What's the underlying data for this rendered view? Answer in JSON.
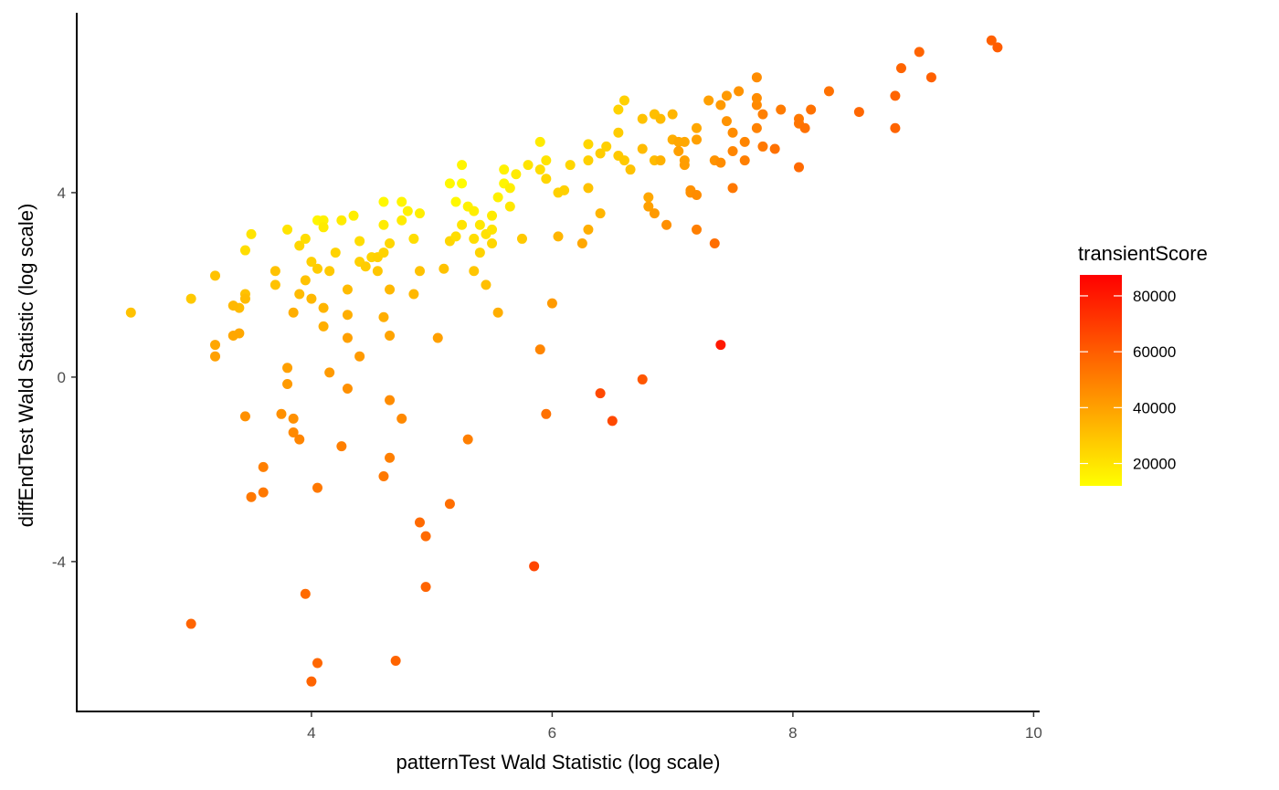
{
  "chart_data": {
    "type": "scatter",
    "xlabel": "patternTest Wald Statistic (log scale)",
    "ylabel": "diffEndTest Wald Statistic (log scale)",
    "xlim": [
      2.05,
      10.05
    ],
    "ylim": [
      -7.25,
      7.9
    ],
    "x_ticks": [
      4,
      6,
      8,
      10
    ],
    "y_ticks": [
      -4,
      0,
      4
    ],
    "grid": false,
    "legend": {
      "title": "transientScore",
      "position": "right",
      "type": "colorbar",
      "range": [
        12000,
        87500
      ],
      "breaks": [
        20000,
        40000,
        60000,
        80000
      ],
      "low_color": "#FFFF00",
      "high_color": "#FF0000"
    },
    "points": [
      [
        2.5,
        1.4,
        30000
      ],
      [
        3.0,
        1.7,
        28000
      ],
      [
        3.2,
        2.2,
        30000
      ],
      [
        3.5,
        3.1,
        20000
      ],
      [
        3.45,
        2.75,
        22000
      ],
      [
        3.45,
        1.8,
        30000
      ],
      [
        3.4,
        1.5,
        32000
      ],
      [
        3.2,
        0.7,
        38000
      ],
      [
        3.2,
        0.45,
        40000
      ],
      [
        3.35,
        0.9,
        38000
      ],
      [
        3.4,
        0.95,
        38000
      ],
      [
        3.35,
        1.55,
        33000
      ],
      [
        3.45,
        1.7,
        32000
      ],
      [
        3.7,
        2.3,
        30000
      ],
      [
        3.7,
        2.0,
        30000
      ],
      [
        3.8,
        3.2,
        20000
      ],
      [
        3.9,
        2.85,
        24000
      ],
      [
        3.95,
        3.0,
        22000
      ],
      [
        4.05,
        3.4,
        15000
      ],
      [
        4.1,
        3.4,
        16000
      ],
      [
        4.1,
        3.25,
        18000
      ],
      [
        4.0,
        2.5,
        26000
      ],
      [
        4.05,
        2.35,
        27000
      ],
      [
        3.95,
        2.1,
        30000
      ],
      [
        3.9,
        1.8,
        32000
      ],
      [
        4.0,
        1.7,
        33000
      ],
      [
        3.85,
        1.4,
        36000
      ],
      [
        3.8,
        0.2,
        40000
      ],
      [
        3.8,
        -0.15,
        42000
      ],
      [
        3.75,
        -0.8,
        45000
      ],
      [
        3.85,
        -0.9,
        45000
      ],
      [
        3.85,
        -1.2,
        47000
      ],
      [
        3.9,
        -1.35,
        48000
      ],
      [
        3.45,
        -0.85,
        45000
      ],
      [
        3.6,
        -1.95,
        50000
      ],
      [
        3.5,
        -2.6,
        52000
      ],
      [
        3.6,
        -2.5,
        52000
      ],
      [
        3.0,
        -5.35,
        58000
      ],
      [
        3.95,
        -4.7,
        56000
      ],
      [
        4.0,
        -6.6,
        58000
      ],
      [
        4.05,
        -6.2,
        57000
      ],
      [
        4.05,
        -2.4,
        52000
      ],
      [
        4.25,
        -1.5,
        50000
      ],
      [
        4.3,
        -0.25,
        45000
      ],
      [
        4.15,
        0.1,
        42000
      ],
      [
        4.1,
        1.1,
        36000
      ],
      [
        4.1,
        1.5,
        34000
      ],
      [
        4.15,
        2.3,
        28000
      ],
      [
        4.2,
        2.7,
        25000
      ],
      [
        4.25,
        3.4,
        18000
      ],
      [
        4.35,
        3.5,
        17000
      ],
      [
        4.4,
        2.95,
        22000
      ],
      [
        4.4,
        2.5,
        26000
      ],
      [
        4.45,
        2.4,
        27000
      ],
      [
        4.5,
        2.6,
        25000
      ],
      [
        4.55,
        2.6,
        26000
      ],
      [
        4.55,
        2.3,
        29000
      ],
      [
        4.6,
        2.7,
        25000
      ],
      [
        4.65,
        2.9,
        24000
      ],
      [
        4.6,
        3.3,
        18000
      ],
      [
        4.6,
        3.8,
        14000
      ],
      [
        4.75,
        3.8,
        15000
      ],
      [
        4.75,
        3.4,
        18000
      ],
      [
        4.8,
        3.6,
        16000
      ],
      [
        4.85,
        3.0,
        22000
      ],
      [
        4.9,
        3.55,
        17000
      ],
      [
        4.9,
        2.3,
        30000
      ],
      [
        4.85,
        1.8,
        33000
      ],
      [
        4.6,
        1.3,
        36000
      ],
      [
        4.65,
        0.9,
        39000
      ],
      [
        4.65,
        1.9,
        33000
      ],
      [
        4.3,
        1.35,
        36000
      ],
      [
        4.3,
        0.85,
        40000
      ],
      [
        4.4,
        0.45,
        42000
      ],
      [
        4.3,
        1.9,
        32000
      ],
      [
        4.65,
        -0.5,
        46000
      ],
      [
        4.75,
        -0.9,
        47000
      ],
      [
        4.65,
        -1.75,
        50000
      ],
      [
        4.6,
        -2.15,
        52000
      ],
      [
        4.7,
        -6.15,
        58000
      ],
      [
        4.9,
        -3.15,
        56000
      ],
      [
        4.95,
        -3.45,
        56000
      ],
      [
        4.95,
        -4.55,
        58000
      ],
      [
        5.15,
        -2.75,
        55000
      ],
      [
        5.3,
        -1.35,
        50000
      ],
      [
        5.05,
        0.85,
        40000
      ],
      [
        5.1,
        2.35,
        30000
      ],
      [
        5.15,
        2.95,
        24000
      ],
      [
        5.2,
        3.05,
        22000
      ],
      [
        5.25,
        3.3,
        20000
      ],
      [
        5.2,
        3.8,
        14000
      ],
      [
        5.25,
        4.2,
        13000
      ],
      [
        5.25,
        4.6,
        15000
      ],
      [
        5.15,
        4.2,
        14000
      ],
      [
        5.3,
        3.7,
        16000
      ],
      [
        5.35,
        3.6,
        17000
      ],
      [
        5.4,
        3.3,
        19000
      ],
      [
        5.35,
        3.0,
        22000
      ],
      [
        5.4,
        2.7,
        25000
      ],
      [
        5.35,
        2.3,
        29000
      ],
      [
        5.45,
        2.0,
        31000
      ],
      [
        5.45,
        3.1,
        21000
      ],
      [
        5.5,
        3.2,
        20000
      ],
      [
        5.5,
        3.5,
        18000
      ],
      [
        5.55,
        3.9,
        16000
      ],
      [
        5.6,
        4.2,
        15000
      ],
      [
        5.6,
        4.5,
        16000
      ],
      [
        5.65,
        4.1,
        17000
      ],
      [
        5.65,
        3.7,
        19000
      ],
      [
        5.5,
        2.9,
        24000
      ],
      [
        5.55,
        1.4,
        36000
      ],
      [
        5.7,
        4.4,
        18000
      ],
      [
        5.8,
        4.6,
        20000
      ],
      [
        5.75,
        3.0,
        28000
      ],
      [
        5.9,
        4.5,
        22000
      ],
      [
        5.95,
        4.3,
        24000
      ],
      [
        5.95,
        4.7,
        20000
      ],
      [
        5.9,
        5.1,
        18000
      ],
      [
        6.05,
        4.0,
        26000
      ],
      [
        6.1,
        4.05,
        26000
      ],
      [
        6.15,
        4.6,
        24000
      ],
      [
        6.05,
        3.05,
        34000
      ],
      [
        6.0,
        1.6,
        42000
      ],
      [
        5.9,
        0.6,
        48000
      ],
      [
        5.95,
        -0.8,
        54000
      ],
      [
        5.85,
        -4.1,
        67000
      ],
      [
        6.25,
        2.9,
        38000
      ],
      [
        6.3,
        3.2,
        36000
      ],
      [
        6.3,
        4.1,
        30000
      ],
      [
        6.3,
        4.7,
        26000
      ],
      [
        6.3,
        5.05,
        24000
      ],
      [
        6.4,
        4.85,
        27000
      ],
      [
        6.45,
        5.0,
        26000
      ],
      [
        6.4,
        3.55,
        34000
      ],
      [
        6.55,
        4.8,
        28000
      ],
      [
        6.55,
        5.8,
        25000
      ],
      [
        6.6,
        4.7,
        28000
      ],
      [
        6.55,
        5.3,
        27000
      ],
      [
        6.6,
        6.0,
        26000
      ],
      [
        6.65,
        4.5,
        30000
      ],
      [
        6.75,
        5.6,
        30000
      ],
      [
        6.75,
        4.95,
        32000
      ],
      [
        6.8,
        3.9,
        38000
      ],
      [
        6.8,
        3.7,
        40000
      ],
      [
        6.85,
        3.55,
        42000
      ],
      [
        6.85,
        4.7,
        32000
      ],
      [
        6.85,
        5.7,
        30000
      ],
      [
        6.85,
        5.7,
        31000
      ],
      [
        6.9,
        5.6,
        32000
      ],
      [
        6.9,
        4.7,
        35000
      ],
      [
        6.95,
        3.3,
        45000
      ],
      [
        7.0,
        5.7,
        34000
      ],
      [
        7.0,
        5.15,
        36000
      ],
      [
        7.05,
        5.1,
        38000
      ],
      [
        7.05,
        4.9,
        40000
      ],
      [
        7.1,
        5.1,
        38000
      ],
      [
        7.1,
        4.7,
        40000
      ],
      [
        7.1,
        4.6,
        41000
      ],
      [
        7.15,
        4.0,
        45000
      ],
      [
        7.15,
        4.05,
        45000
      ],
      [
        7.2,
        3.95,
        46000
      ],
      [
        7.2,
        3.2,
        50000
      ],
      [
        7.35,
        2.9,
        55000
      ],
      [
        6.75,
        -0.05,
        62000
      ],
      [
        6.5,
        -0.95,
        66000
      ],
      [
        6.4,
        -0.35,
        66000
      ],
      [
        7.4,
        0.7,
        80000
      ],
      [
        7.2,
        5.4,
        38000
      ],
      [
        7.2,
        5.15,
        40000
      ],
      [
        7.3,
        6.0,
        40000
      ],
      [
        7.35,
        4.7,
        44000
      ],
      [
        7.4,
        4.65,
        46000
      ],
      [
        7.4,
        5.9,
        42000
      ],
      [
        7.45,
        6.1,
        42000
      ],
      [
        7.45,
        5.55,
        44000
      ],
      [
        7.5,
        5.3,
        46000
      ],
      [
        7.5,
        4.9,
        48000
      ],
      [
        7.5,
        4.1,
        52000
      ],
      [
        7.55,
        6.2,
        44000
      ],
      [
        7.6,
        5.1,
        48000
      ],
      [
        7.6,
        4.7,
        50000
      ],
      [
        7.7,
        6.5,
        46000
      ],
      [
        7.7,
        5.9,
        47000
      ],
      [
        7.7,
        6.05,
        46000
      ],
      [
        7.7,
        5.4,
        49000
      ],
      [
        7.75,
        5.0,
        52000
      ],
      [
        7.75,
        5.7,
        50000
      ],
      [
        7.85,
        4.95,
        54000
      ],
      [
        7.9,
        5.8,
        51000
      ],
      [
        8.05,
        5.6,
        52000
      ],
      [
        8.05,
        5.5,
        53000
      ],
      [
        8.05,
        4.55,
        56000
      ],
      [
        8.1,
        5.4,
        54000
      ],
      [
        8.15,
        5.8,
        54000
      ],
      [
        8.3,
        6.2,
        54000
      ],
      [
        8.55,
        5.75,
        57000
      ],
      [
        8.85,
        6.1,
        58000
      ],
      [
        8.85,
        5.4,
        58000
      ],
      [
        8.9,
        6.7,
        58000
      ],
      [
        9.05,
        7.05,
        58000
      ],
      [
        9.15,
        6.5,
        59000
      ],
      [
        9.65,
        7.3,
        59000
      ],
      [
        9.7,
        7.15,
        60000
      ]
    ]
  }
}
